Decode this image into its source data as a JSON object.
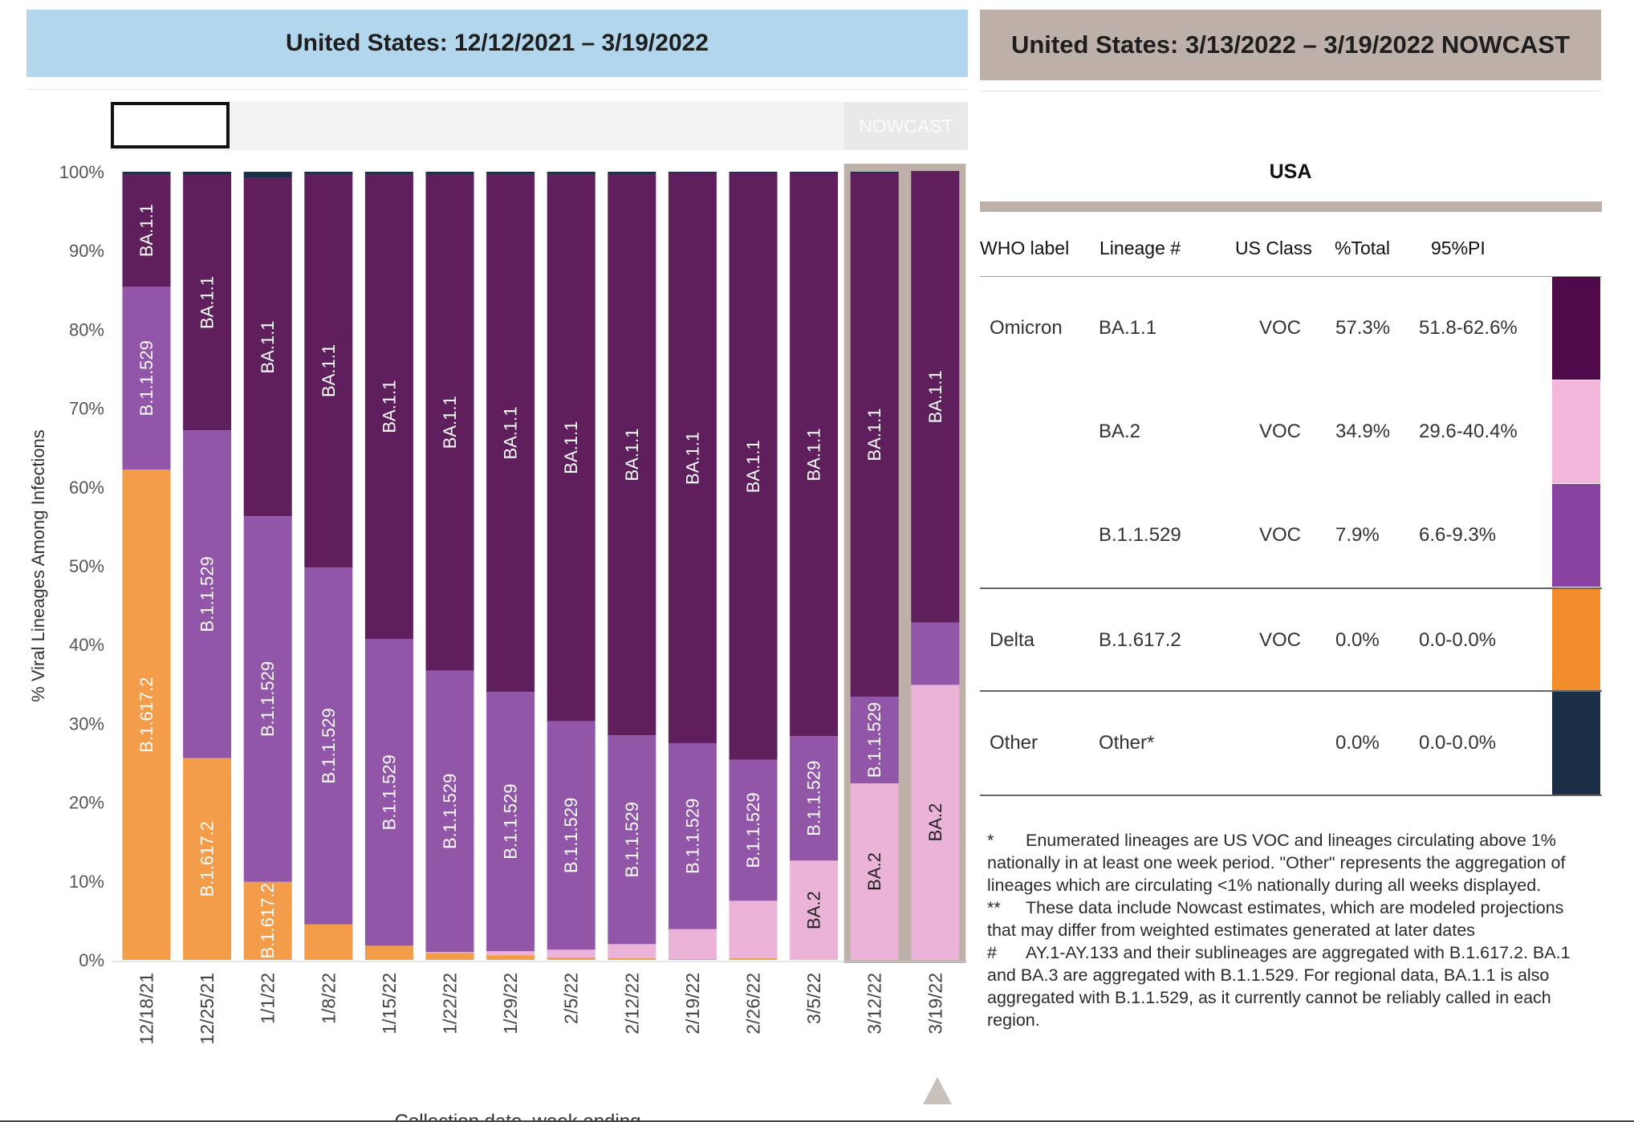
{
  "header": {
    "left_title": "United States: 12/12/2021 – 3/19/2022",
    "right_title": "United States: 3/13/2022 – 3/19/2022 NOWCAST"
  },
  "range_selector": {
    "nowcast_label": "NOWCAST"
  },
  "chart_data": {
    "type": "bar",
    "stacked": true,
    "ylabel": "% Viral Lineages Among Infections",
    "xlabel": "Collection date, week ending",
    "ylim": [
      0,
      100
    ],
    "yticks": [
      "0%",
      "10%",
      "20%",
      "30%",
      "40%",
      "50%",
      "60%",
      "70%",
      "80%",
      "90%",
      "100%"
    ],
    "categories": [
      "12/18/21",
      "12/25/21",
      "1/1/22",
      "1/8/22",
      "1/15/22",
      "1/22/22",
      "1/29/22",
      "2/5/22",
      "2/12/22",
      "2/19/22",
      "2/26/22",
      "3/5/22",
      "3/12/22",
      "3/19/22"
    ],
    "nowcast_categories": [
      "3/12/22",
      "3/19/22"
    ],
    "series": [
      {
        "name": "B.1.617.2",
        "color": "#f39c49",
        "values": [
          62.2,
          25.6,
          9.9,
          4.5,
          1.8,
          0.9,
          0.6,
          0.3,
          0.2,
          0.1,
          0.2,
          0.0,
          0.0,
          0.0
        ]
      },
      {
        "name": "BA.2",
        "color": "#ebb3d7",
        "values": [
          0.0,
          0.0,
          0.0,
          0.0,
          0.0,
          0.1,
          0.5,
          1.0,
          1.8,
          3.8,
          7.3,
          12.6,
          22.4,
          34.9
        ]
      },
      {
        "name": "B.1.1.529",
        "color": "#9256a9",
        "values": [
          23.2,
          41.6,
          46.4,
          45.3,
          38.9,
          35.7,
          32.9,
          29.0,
          26.5,
          23.6,
          17.9,
          15.8,
          11.0,
          7.9
        ]
      },
      {
        "name": "BA.1.1",
        "color": "#5f1f5d",
        "values": [
          14.3,
          32.4,
          42.9,
          49.9,
          59.0,
          63.0,
          65.7,
          69.4,
          71.2,
          72.3,
          74.4,
          71.4,
          66.5,
          57.3
        ]
      },
      {
        "name": "Other",
        "color": "#1a2e45",
        "values": [
          0.3,
          0.4,
          0.8,
          0.3,
          0.3,
          0.3,
          0.3,
          0.3,
          0.3,
          0.2,
          0.2,
          0.2,
          0.1,
          0.0
        ]
      }
    ]
  },
  "legend_panel": {
    "title": "USA",
    "columns": [
      "WHO label",
      "Lineage #",
      "US Class",
      "%Total",
      "95%PI"
    ],
    "rows": [
      {
        "who": "Omicron",
        "lineage": "BA.1.1",
        "class": "VOC",
        "total": "57.3%",
        "pi": "51.8-62.6%",
        "color": "#4e0a4a"
      },
      {
        "who": "",
        "lineage": "BA.2",
        "class": "VOC",
        "total": "34.9%",
        "pi": "29.6-40.4%",
        "color": "#f1b6da"
      },
      {
        "who": "",
        "lineage": "B.1.1.529",
        "class": "VOC",
        "total": "7.9%",
        "pi": "6.6-9.3%",
        "color": "#8a42a0"
      },
      {
        "who": "Delta",
        "lineage": "B.1.617.2",
        "class": "VOC",
        "total": "0.0%",
        "pi": "0.0-0.0%",
        "color": "#f08c2c"
      },
      {
        "who": "Other",
        "lineage": "Other*",
        "class": "",
        "total": "0.0%",
        "pi": "0.0-0.0%",
        "color": "#1a2e45"
      }
    ]
  },
  "notes": [
    {
      "mark": "*",
      "text": "Enumerated lineages are US VOC and lineages circulating above 1% nationally in at least one week period. \"Other\" represents the aggregation of lineages which are circulating <1% nationally during all weeks displayed."
    },
    {
      "mark": "**",
      "text": "These data include Nowcast estimates, which are modeled projections that may differ from weighted estimates generated at later dates"
    },
    {
      "mark": "#",
      "text": "AY.1-AY.133 and their sublineages are aggregated with B.1.617.2. BA.1 and BA.3 are aggregated with B.1.1.529. For regional data, BA.1.1 is also aggregated with B.1.1.529, as it currently cannot be reliably called in each region."
    }
  ]
}
